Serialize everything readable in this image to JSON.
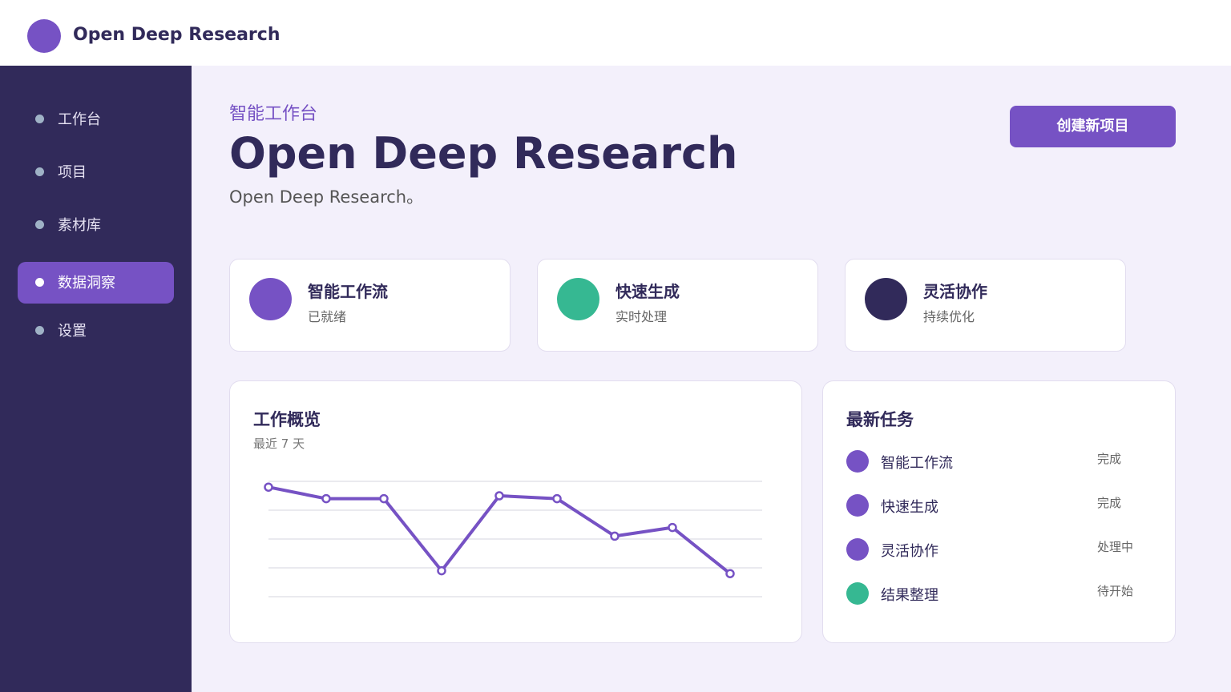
{
  "app": {
    "brand_name": "Open Deep Research",
    "accent": "#7652c4",
    "dark": "#312a5a",
    "green": "#36b892"
  },
  "sidebar": {
    "items": [
      {
        "label": "工作台",
        "active": false
      },
      {
        "label": "项目",
        "active": false
      },
      {
        "label": "素材库",
        "active": false
      },
      {
        "label": "数据洞察",
        "active": true
      },
      {
        "label": "设置",
        "active": false
      }
    ]
  },
  "header": {
    "eyebrow": "智能工作台",
    "title": "Open Deep Research",
    "subtitle": "Open Deep Research。",
    "create_button_label": "创建新项目"
  },
  "stats": [
    {
      "title": "智能工作流",
      "subtitle": "已就绪",
      "color": "#7652c4"
    },
    {
      "title": "快速生成",
      "subtitle": "实时处理",
      "color": "#36b892"
    },
    {
      "title": "灵活协作",
      "subtitle": "持续优化",
      "color": "#312a5a"
    }
  ],
  "overview": {
    "title": "工作概览",
    "subtitle": "最近 7 天"
  },
  "chart_data": {
    "type": "line",
    "title": "工作概览",
    "subtitle": "最近 7 天",
    "xlabel": "",
    "ylabel": "",
    "ylim": [
      0,
      4
    ],
    "grid": true,
    "series": [
      {
        "values": [
          3.8,
          3.4,
          3.4,
          0.9,
          3.5,
          3.4,
          2.1,
          2.4,
          0.8
        ]
      }
    ]
  },
  "tasks": {
    "title": "最新任务",
    "items": [
      {
        "name": "智能工作流",
        "status": "完成",
        "color": "#7652c4"
      },
      {
        "name": "快速生成",
        "status": "完成",
        "color": "#7652c4"
      },
      {
        "name": "灵活协作",
        "status": "处理中",
        "color": "#7652c4"
      },
      {
        "name": "结果整理",
        "status": "待开始",
        "color": "#36b892"
      }
    ]
  }
}
